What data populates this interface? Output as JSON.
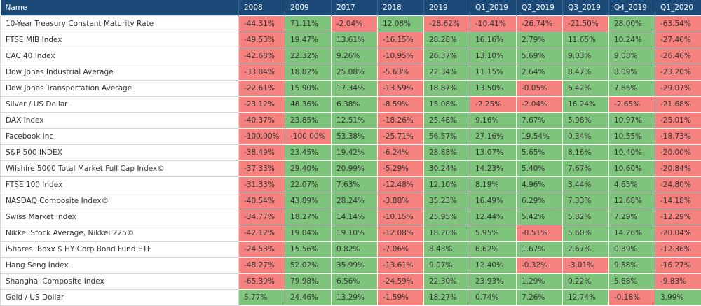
{
  "table": {
    "header": [
      "Name",
      "2008",
      "2009",
      "2017",
      "2018",
      "2019",
      "Q1_2019",
      "Q2_2019",
      "Q3_2019",
      "Q4_2019",
      "Q1_2020"
    ],
    "rows": [
      [
        "10-Year Treasury Constant Maturity Rate",
        "-44.31%",
        "71.11%",
        "-2.04%",
        "12.08%",
        "-28.62%",
        "-10.41%",
        "-26.74%",
        "-21.50%",
        "28.00%",
        "-63.54%"
      ],
      [
        "FTSE MIB Index",
        "-49.53%",
        "19.47%",
        "13.61%",
        "-16.15%",
        "28.28%",
        "16.16%",
        "2.79%",
        "11.65%",
        "10.24%",
        "-27.46%"
      ],
      [
        "CAC 40 Index",
        "-42.68%",
        "22.32%",
        "9.26%",
        "-10.95%",
        "26.37%",
        "13.10%",
        "5.69%",
        "9.03%",
        "9.08%",
        "-26.46%"
      ],
      [
        "Dow Jones Industrial Average",
        "-33.84%",
        "18.82%",
        "25.08%",
        "-5.63%",
        "22.34%",
        "11.15%",
        "2.64%",
        "8.47%",
        "8.09%",
        "-23.20%"
      ],
      [
        "Dow Jones Transportation Average",
        "-22.61%",
        "15.90%",
        "17.34%",
        "-13.59%",
        "18.87%",
        "13.50%",
        "-0.05%",
        "6.42%",
        "7.65%",
        "-29.07%"
      ],
      [
        "Silver / US Dollar",
        "-23.12%",
        "48.36%",
        "6.38%",
        "-8.59%",
        "15.08%",
        "-2.25%",
        "-2.04%",
        "16.24%",
        "-2.65%",
        "-21.68%"
      ],
      [
        "DAX Index",
        "-40.37%",
        "23.85%",
        "12.51%",
        "-18.26%",
        "25.48%",
        "9.16%",
        "7.67%",
        "5.98%",
        "10.97%",
        "-25.01%"
      ],
      [
        "Facebook Inc",
        "-100.00%",
        "-100.00%",
        "53.38%",
        "-25.71%",
        "56.57%",
        "27.16%",
        "19.54%",
        "0.34%",
        "10.55%",
        "-18.73%"
      ],
      [
        "S&P 500 INDEX",
        "-38.49%",
        "23.45%",
        "19.42%",
        "-6.24%",
        "28.88%",
        "13.07%",
        "5.65%",
        "8.16%",
        "10.40%",
        "-20.00%"
      ],
      [
        "Wilshire 5000 Total Market Full Cap Index©",
        "-37.33%",
        "29.40%",
        "20.99%",
        "-5.29%",
        "30.24%",
        "14.23%",
        "5.40%",
        "7.67%",
        "10.60%",
        "-20.84%"
      ],
      [
        "FTSE 100 Index",
        "-31.33%",
        "22.07%",
        "7.63%",
        "-12.48%",
        "12.10%",
        "8.19%",
        "4.96%",
        "3.44%",
        "4.65%",
        "-24.80%"
      ],
      [
        "NASDAQ Composite Index©",
        "-40.54%",
        "43.89%",
        "28.24%",
        "-3.88%",
        "35.23%",
        "16.49%",
        "6.29%",
        "7.33%",
        "12.68%",
        "-14.18%"
      ],
      [
        "Swiss Market Index",
        "-34.77%",
        "18.27%",
        "14.14%",
        "-10.15%",
        "25.95%",
        "12.44%",
        "5.42%",
        "5.82%",
        "7.29%",
        "-12.29%"
      ],
      [
        "Nikkei Stock Average, Nikkei 225©",
        "-42.12%",
        "19.04%",
        "19.10%",
        "-12.08%",
        "18.20%",
        "5.95%",
        "-0.51%",
        "5.60%",
        "14.26%",
        "-20.04%"
      ],
      [
        "iShares iBoxx $ HY Corp Bond Fund ETF",
        "-24.53%",
        "15.56%",
        "0.82%",
        "-7.06%",
        "8.43%",
        "6.62%",
        "1.67%",
        "2.67%",
        "0.89%",
        "-12.36%"
      ],
      [
        "Hang Seng Index",
        "-48.27%",
        "52.02%",
        "35.99%",
        "-13.61%",
        "9.07%",
        "12.40%",
        "-0.32%",
        "-3.01%",
        "9.58%",
        "-16.27%"
      ],
      [
        "Shanghai Composite Index",
        "-65.39%",
        "79.98%",
        "6.56%",
        "-24.59%",
        "22.30%",
        "23.93%",
        "1.29%",
        "0.22%",
        "5.68%",
        "-9.83%"
      ],
      [
        "Gold / US Dollar",
        "5.77%",
        "24.46%",
        "13.29%",
        "-1.59%",
        "18.27%",
        "0.74%",
        "7.26%",
        "12.74%",
        "-0.18%",
        "3.99%"
      ]
    ]
  }
}
